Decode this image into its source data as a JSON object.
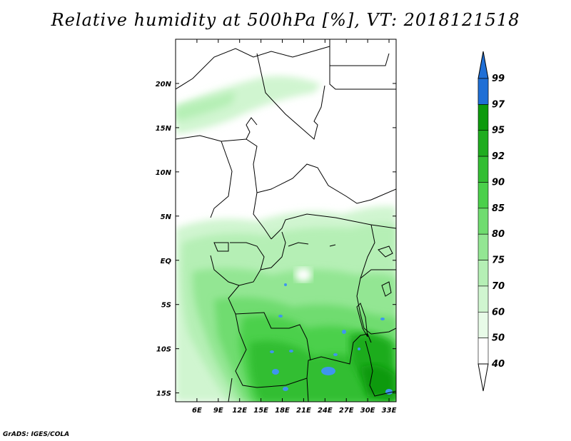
{
  "title": "Relative humidity at 500hPa [%], VT: 2018121518",
  "credit": "GrADS: IGES/COLA",
  "map": {
    "lon_range": [
      3,
      34
    ],
    "lat_range": [
      -16,
      25
    ],
    "lon_ticks": [
      "6E",
      "9E",
      "12E",
      "15E",
      "18E",
      "21E",
      "24E",
      "27E",
      "30E",
      "33E"
    ],
    "lat_ticks": [
      "20N",
      "15N",
      "10N",
      "5N",
      "EQ",
      "5S",
      "10S",
      "15S"
    ]
  },
  "colorbar": {
    "levels": [
      "99",
      "97",
      "95",
      "92",
      "90",
      "85",
      "80",
      "75",
      "70",
      "60",
      "50",
      "40"
    ],
    "colors": [
      "#1f6fd6",
      "#3f95ee",
      "#0d9a0d",
      "#1fac1f",
      "#33be33",
      "#4bd04b",
      "#6fdc6f",
      "#93e693",
      "#b5efb5",
      "#d0f5d0",
      "#e8fbe8",
      "#ffffff"
    ],
    "top_arrow_color": "#1f6fd6",
    "bottom_arrow_color": "#ffffff"
  }
}
